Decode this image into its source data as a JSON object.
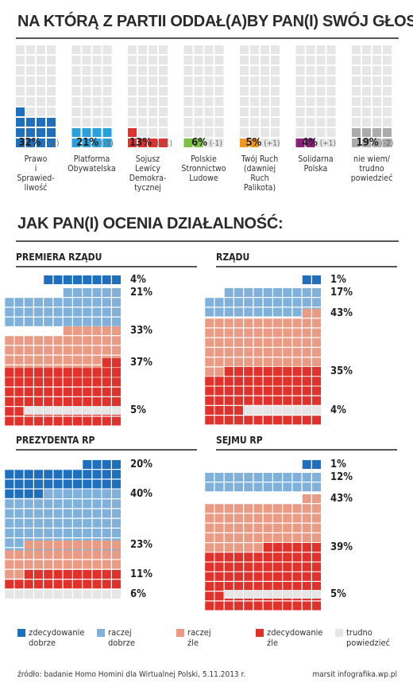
{
  "title1": "NA KTÓRĄ Z PARTII ODDAŁ(A)BY PAN(I) SWÓJ GŁOS?",
  "title2": "JAK PAN(I) OCENIA DZIAŁALNOŚĆ:",
  "colors": {
    "empty": "#e6e6e6",
    "parties": [
      "#1f6fbf",
      "#27a0dc",
      "#e2302b",
      "#7cc242",
      "#f49422",
      "#8a1f7c",
      "#ababab"
    ],
    "ratings": [
      "#1f6fbf",
      "#7fb1da",
      "#eb9a84",
      "#e2302b",
      "#e6e6e6"
    ]
  },
  "chart_data": [
    {
      "type": "waffle",
      "title": "NA KTÓRĄ Z PARTII ODDAŁ(A)BY PAN(I) SWÓJ GŁOS?",
      "categories": [
        "Prawo i Sprawied-liwość",
        "Platforma Obywatelska",
        "Sojusz Lewicy Demokra-tycznej",
        "Polskie Stronnictwo Ludowe",
        "Twój Ruch (dawniej Ruch Palikota)",
        "Solidarna Polska",
        "nie wiem/ trudno powiedzieć"
      ],
      "labels": [
        [
          "Prawo",
          "i",
          "Sprawied-",
          "liwość"
        ],
        [
          "Platforma",
          "Obywatelska"
        ],
        [
          "Sojusz",
          "Lewicy",
          "Demokra-",
          "tycznej"
        ],
        [
          "Polskie",
          "Stronnictwo",
          "Ludowe"
        ],
        [
          "Twój Ruch",
          "(dawniej",
          "Ruch",
          "Palikota)"
        ],
        [
          "Solidarna",
          "Polska"
        ],
        [
          "nie wiem/",
          "trudno",
          "powiedzieć"
        ]
      ],
      "values": [
        32,
        21,
        13,
        6,
        5,
        4,
        19
      ],
      "value_labels": [
        "32%",
        "21%",
        "13%",
        "6%",
        "5%",
        "4%",
        "19%"
      ],
      "changes": [
        "(+2)",
        "(-1)",
        "(b.z.)",
        "(-1)",
        "(+1)",
        "(+1)",
        "(-2)"
      ]
    },
    {
      "type": "waffle",
      "title": "JAK PAN(I) OCENIA DZIAŁALNOŚĆ:",
      "categories": [
        "zdecydowanie dobrze",
        "raczej dobrze",
        "raczej źle",
        "zdecydowanie źle",
        "trudno powiedzieć"
      ],
      "panels": [
        {
          "name": "PREMIERA RZĄDU",
          "values": [
            4,
            21,
            33,
            37,
            5
          ],
          "value_labels": [
            "4%",
            "21%",
            "33%",
            "37%",
            "5%"
          ]
        },
        {
          "name": "RZĄDU",
          "values": [
            1,
            17,
            43,
            35,
            4
          ],
          "value_labels": [
            "1%",
            "17%",
            "43%",
            "35%",
            "4%"
          ]
        },
        {
          "name": "PREZYDENTA RP",
          "values": [
            20,
            40,
            23,
            11,
            6
          ],
          "value_labels": [
            "20%",
            "40%",
            "23%",
            "11%",
            "6%"
          ]
        },
        {
          "name": "SEJMU RP",
          "values": [
            1,
            12,
            43,
            39,
            5
          ],
          "value_labels": [
            "1%",
            "12%",
            "43%",
            "39%",
            "5%"
          ]
        }
      ]
    }
  ],
  "legend": [
    [
      "zdecydowanie",
      "dobrze"
    ],
    [
      "raczej",
      "dobrze"
    ],
    [
      "raczej",
      "źle"
    ],
    [
      "zdecydowanie",
      "źle"
    ],
    [
      "trudno",
      "powiedzieć"
    ]
  ],
  "source": "źródło: badanie Homo Homini dla Wirtualnej Polski, 5.11.2013 r.",
  "credit": "marsit infografika.wp.pl"
}
